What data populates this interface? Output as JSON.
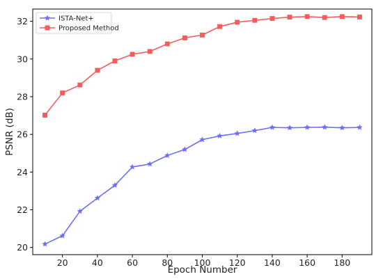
{
  "chart_data": {
    "type": "line",
    "xlabel": "Epoch Number",
    "ylabel": "PSNR (dB)",
    "xlim": [
      3,
      197
    ],
    "ylim": [
      19.62,
      32.65
    ],
    "xticks": [
      20,
      40,
      60,
      80,
      100,
      120,
      140,
      160,
      180
    ],
    "yticks": [
      20,
      22,
      24,
      26,
      28,
      30,
      32
    ],
    "x": [
      10,
      20,
      30,
      40,
      50,
      60,
      70,
      80,
      90,
      100,
      110,
      120,
      130,
      140,
      150,
      160,
      170,
      180,
      190
    ],
    "series": [
      {
        "name": "ISTA-Net+",
        "color": "#6e6ef5",
        "marker": "star",
        "values": [
          20.18,
          20.62,
          21.92,
          22.62,
          23.3,
          24.27,
          24.43,
          24.88,
          25.2,
          25.72,
          25.92,
          26.05,
          26.2,
          26.37,
          26.35,
          26.37,
          26.38,
          26.35,
          26.37
        ]
      },
      {
        "name": "Proposed Method",
        "color": "#f75b5b",
        "marker": "square",
        "values": [
          27.02,
          28.2,
          28.62,
          29.4,
          29.9,
          30.25,
          30.4,
          30.8,
          31.12,
          31.27,
          31.72,
          31.95,
          32.05,
          32.15,
          32.22,
          32.25,
          32.2,
          32.25,
          32.23
        ]
      }
    ],
    "legend_position": "top-left",
    "grid": false
  }
}
